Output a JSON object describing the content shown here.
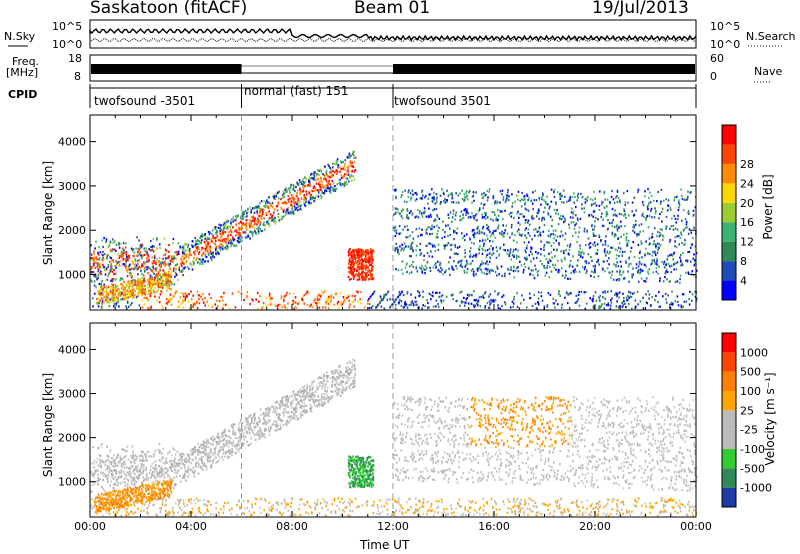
{
  "header": {
    "station": "Saskatoon (fitACF)",
    "beam": "Beam 01",
    "date": "19/Jul/2013"
  },
  "side_labels": {
    "nsky": "N.Sky",
    "nsearch": "N.Search",
    "freq": "Freq.",
    "freq_unit": "[MHz]",
    "nave": "Nave",
    "cpid": "CPID"
  },
  "noise_panel": {
    "left_ticks": [
      "10^5",
      "10^0"
    ],
    "right_ticks": [
      "10^5",
      "10^0"
    ]
  },
  "freq_panel": {
    "left_ticks": [
      "18",
      "8"
    ],
    "right_ticks": [
      "60",
      "0"
    ]
  },
  "cpid_panel": {
    "segments": [
      {
        "label": "twofsound -3501",
        "start": 0,
        "end": 6
      },
      {
        "label": "normal (fast) 151",
        "start": 6,
        "end": 12
      },
      {
        "label": "twofsound 3501",
        "start": 12,
        "end": 24
      }
    ]
  },
  "chart_data": [
    {
      "type": "heatmap",
      "name": "power",
      "ylabel": "Slant Range [km]",
      "xlabel": "Time UT",
      "xticks": [
        "00:00",
        "04:00",
        "08:00",
        "12:00",
        "16:00",
        "20:00",
        "00:00"
      ],
      "yticks": [
        "1000",
        "2000",
        "3000",
        "4000"
      ],
      "ylim": [
        200,
        4600
      ],
      "colorbar": {
        "label": "Power [dB]",
        "ticks": [
          "4",
          "8",
          "12",
          "16",
          "20",
          "24",
          "28"
        ],
        "colors": [
          "#0000ff",
          "#1e4bb4",
          "#2e8b57",
          "#3cb371",
          "#9acd32",
          "#ffd700",
          "#ff8c00",
          "#ff4500",
          "#ff0000"
        ]
      }
    },
    {
      "type": "heatmap",
      "name": "velocity",
      "ylabel": "Slant Range [km]",
      "xlabel": "Time UT",
      "xticks": [
        "00:00",
        "04:00",
        "08:00",
        "12:00",
        "16:00",
        "20:00",
        "00:00"
      ],
      "yticks": [
        "1000",
        "2000",
        "3000",
        "4000"
      ],
      "ylim": [
        200,
        4600
      ],
      "colorbar": {
        "label": "Velocity [m s⁻¹]",
        "ticks": [
          "1000",
          "500",
          "100",
          "25",
          "-25",
          "-100",
          "-500",
          "-1000"
        ],
        "colors": [
          "#1e3ca8",
          "#2e8b57",
          "#32cd32",
          "#bbbbbb",
          "#bbbbbb",
          "#ffa500",
          "#ff7f00",
          "#ff4500",
          "#ff0000"
        ]
      }
    }
  ],
  "x_axis_title": "Time UT"
}
